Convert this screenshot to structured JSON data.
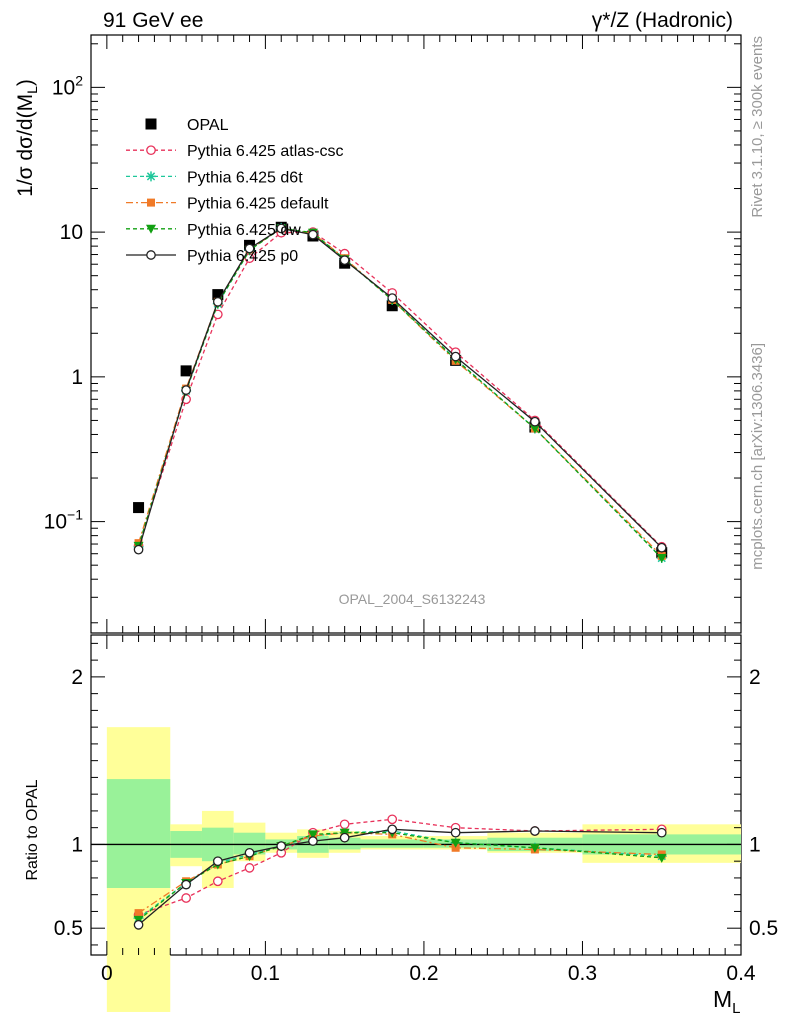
{
  "header": {
    "left": "91 GeV ee",
    "right": "γ*/Z (Hadronic)"
  },
  "side_labels": {
    "rivet": "Rivet 3.1.10, ≥ 300k events",
    "mcplots": "mcplots.cern.ch [arXiv:1306.3436]"
  },
  "watermark": "OPAL_2004_S6132243",
  "chart_data": [
    {
      "type": "line",
      "panel": "main",
      "ylabel": "1/σ dσ/d(M_L)",
      "yscale": "log",
      "ylim": [
        0.017,
        230
      ],
      "xlim": [
        -0.01,
        0.4
      ],
      "yticklabels": [
        "10^−1",
        "1",
        "10",
        "10^2"
      ],
      "legend_position": "upper-left",
      "x": [
        0.02,
        0.05,
        0.07,
        0.09,
        0.11,
        0.13,
        0.15,
        0.18,
        0.22,
        0.27,
        0.35
      ],
      "series": [
        {
          "name": "OPAL",
          "color": "#000000",
          "marker": "square",
          "values": [
            0.125,
            1.1,
            3.7,
            8.1,
            10.8,
            9.4,
            6.1,
            3.1,
            1.3,
            0.45,
            0.061
          ]
        },
        {
          "name": "Pythia 6.425 atlas-csc",
          "color": "#e8315a",
          "marker": "open-circle",
          "values": [
            0.068,
            0.7,
            2.7,
            6.6,
            9.9,
            10.0,
            7.1,
            3.8,
            1.48,
            0.5,
            0.067
          ]
        },
        {
          "name": "Pythia 6.425 d6t",
          "color": "#1ec79a",
          "marker": "star",
          "values": [
            0.067,
            0.8,
            3.2,
            7.5,
            10.7,
            9.8,
            6.5,
            3.4,
            1.33,
            0.44,
            0.056
          ]
        },
        {
          "name": "Pythia 6.425 default",
          "color": "#f07a28",
          "marker": "filled-square",
          "values": [
            0.071,
            0.83,
            3.3,
            7.6,
            10.6,
            9.8,
            6.6,
            3.4,
            1.29,
            0.44,
            0.058
          ]
        },
        {
          "name": "Pythia 6.425 dw",
          "color": "#12a012",
          "marker": "triangle-down",
          "values": [
            0.068,
            0.8,
            3.2,
            7.5,
            10.6,
            9.9,
            6.5,
            3.4,
            1.32,
            0.44,
            0.056
          ]
        },
        {
          "name": "Pythia 6.425 p0",
          "color": "#222222",
          "marker": "open-circle",
          "values": [
            0.064,
            0.81,
            3.3,
            7.7,
            10.6,
            9.6,
            6.4,
            3.5,
            1.38,
            0.49,
            0.066
          ]
        }
      ]
    },
    {
      "type": "line",
      "panel": "ratio",
      "ylabel": "Ratio to OPAL",
      "xlabel": "M_L",
      "ylim": [
        0.34,
        2.25
      ],
      "xlim": [
        -0.01,
        0.4
      ],
      "yticklabels": [
        "0.5",
        "1",
        "2"
      ],
      "xticklabels": [
        "0",
        "0.1",
        "0.2",
        "0.3",
        "0.4"
      ],
      "bins": [
        [
          0.0,
          0.04
        ],
        [
          0.04,
          0.06
        ],
        [
          0.06,
          0.08
        ],
        [
          0.08,
          0.1
        ],
        [
          0.1,
          0.12
        ],
        [
          0.12,
          0.14
        ],
        [
          0.14,
          0.16
        ],
        [
          0.16,
          0.2
        ],
        [
          0.2,
          0.24
        ],
        [
          0.24,
          0.3
        ],
        [
          0.3,
          0.4
        ]
      ],
      "band_total": [
        [
          0.0,
          1.7
        ],
        [
          0.87,
          1.12
        ],
        [
          0.74,
          1.2
        ],
        [
          0.9,
          1.13
        ],
        [
          0.95,
          1.07
        ],
        [
          0.92,
          1.09
        ],
        [
          0.95,
          1.08
        ],
        [
          0.97,
          1.05
        ],
        [
          0.97,
          1.05
        ],
        [
          0.95,
          1.07
        ],
        [
          0.89,
          1.12
        ]
      ],
      "band_stat": [
        [
          0.74,
          1.39
        ],
        [
          0.92,
          1.08
        ],
        [
          0.9,
          1.1
        ],
        [
          0.94,
          1.07
        ],
        [
          0.97,
          1.03
        ],
        [
          0.95,
          1.05
        ],
        [
          0.97,
          1.04
        ],
        [
          0.98,
          1.03
        ],
        [
          0.98,
          1.03
        ],
        [
          0.96,
          1.04
        ],
        [
          0.94,
          1.06
        ]
      ],
      "x": [
        0.02,
        0.05,
        0.07,
        0.09,
        0.11,
        0.13,
        0.15,
        0.18,
        0.22,
        0.27,
        0.35
      ],
      "series": [
        {
          "name": "Pythia 6.425 atlas-csc",
          "color": "#e8315a",
          "marker": "open-circle",
          "values": [
            0.58,
            0.68,
            0.78,
            0.86,
            0.95,
            1.07,
            1.12,
            1.15,
            1.1,
            1.08,
            1.09
          ]
        },
        {
          "name": "Pythia 6.425 d6t",
          "color": "#1ec79a",
          "marker": "star",
          "values": [
            0.56,
            0.77,
            0.89,
            0.94,
            0.99,
            1.05,
            1.07,
            1.08,
            1.01,
            0.98,
            0.93
          ]
        },
        {
          "name": "Pythia 6.425 default",
          "color": "#f07a28",
          "marker": "filled-square",
          "values": [
            0.59,
            0.78,
            0.88,
            0.93,
            0.99,
            1.05,
            1.07,
            1.06,
            0.98,
            0.97,
            0.94
          ]
        },
        {
          "name": "Pythia 6.425 dw",
          "color": "#12a012",
          "marker": "triangle-down",
          "values": [
            0.55,
            0.77,
            0.88,
            0.93,
            0.99,
            1.06,
            1.07,
            1.07,
            1.01,
            0.98,
            0.92
          ]
        },
        {
          "name": "Pythia 6.425 p0",
          "color": "#222222",
          "marker": "open-circle",
          "values": [
            0.52,
            0.76,
            0.9,
            0.95,
            0.99,
            1.02,
            1.04,
            1.09,
            1.07,
            1.08,
            1.07
          ]
        }
      ]
    }
  ]
}
